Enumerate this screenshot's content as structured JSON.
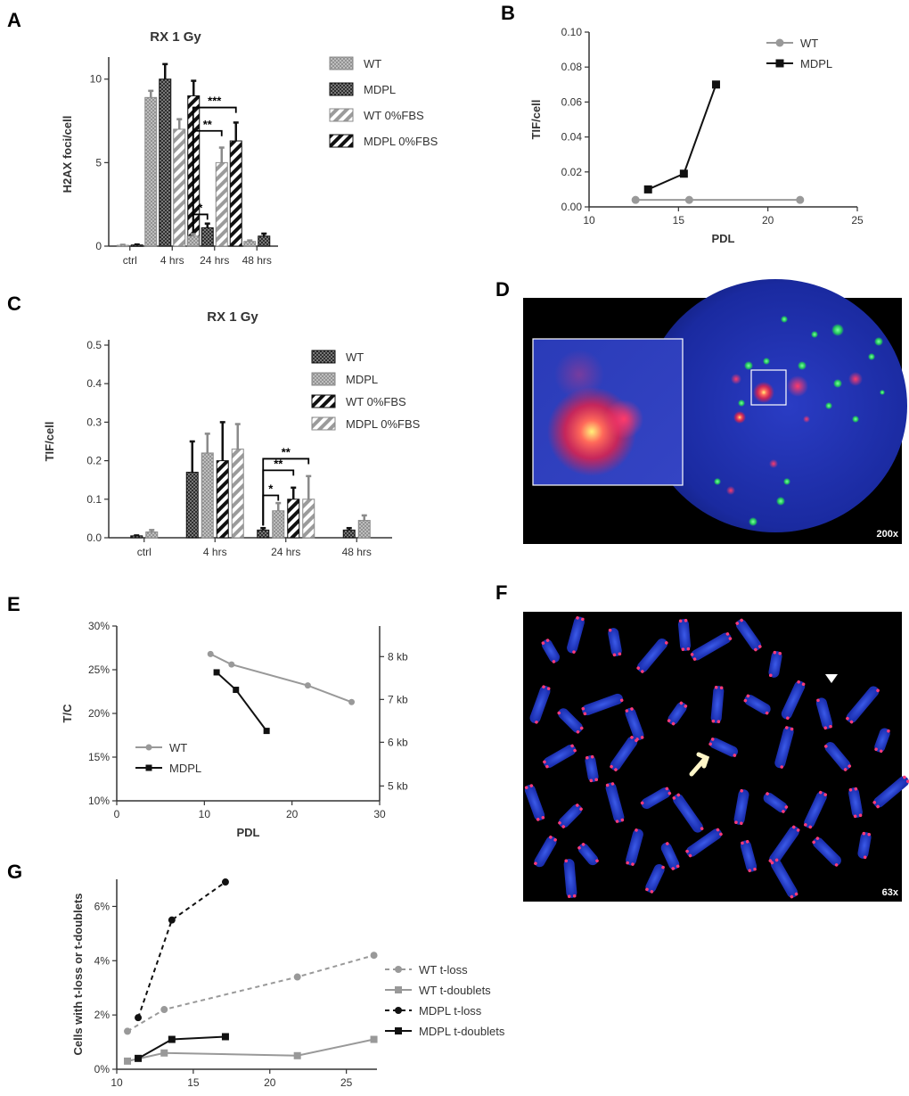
{
  "panels": {
    "A": "A",
    "B": "B",
    "C": "C",
    "D": "D",
    "E": "E",
    "F": "F",
    "G": "G"
  },
  "colors": {
    "gray": "#999999",
    "black": "#111111",
    "blue": "#1a2ca8",
    "red": "#e0224a",
    "green": "#21c75b"
  },
  "chart_data": [
    {
      "id": "A",
      "type": "bar",
      "title": "RX 1 Gy",
      "ylabel": "H2AX foci/cell",
      "categories": [
        "ctrl",
        "4 hrs",
        "24 hrs",
        "48 hrs"
      ],
      "ylim": [
        0,
        11
      ],
      "yticks": [
        0,
        5,
        10
      ],
      "series": [
        {
          "name": "WT",
          "style": "gray-crosshatch",
          "values": [
            0.05,
            8.9,
            0.6,
            0.28
          ],
          "errors": [
            0.03,
            0.4,
            0.12,
            0.06
          ]
        },
        {
          "name": "MDPL",
          "style": "black-crosshatch",
          "values": [
            0.07,
            10.0,
            1.1,
            0.6
          ],
          "errors": [
            0.03,
            0.9,
            0.25,
            0.15
          ]
        },
        {
          "name": "WT 0%FBS",
          "style": "gray-stripes",
          "values": [
            null,
            7.0,
            5.0,
            null
          ],
          "errors": [
            null,
            0.6,
            0.9,
            null
          ]
        },
        {
          "name": "MDPL 0%FBS",
          "style": "black-stripes",
          "values": [
            null,
            9.0,
            6.3,
            null
          ],
          "errors": [
            null,
            0.9,
            1.1,
            null
          ]
        }
      ],
      "significance": [
        {
          "label": "*",
          "category": "24 hrs",
          "from": 0,
          "to": 1,
          "y": 1.9
        },
        {
          "label": "**",
          "category": "24 hrs",
          "from": 0,
          "to": 2,
          "y": 6.9
        },
        {
          "label": "***",
          "category": "24 hrs",
          "from": 0,
          "to": 3,
          "y": 8.3
        }
      ]
    },
    {
      "id": "B",
      "type": "line",
      "ylabel": "TIF/cell",
      "xlabel": "PDL",
      "xlim": [
        10,
        25
      ],
      "xticks": [
        10,
        15,
        20,
        25
      ],
      "ylim": [
        0,
        0.1
      ],
      "yticks": [
        "0.00",
        "0.02",
        "0.04",
        "0.06",
        "0.08",
        "0.10"
      ],
      "series": [
        {
          "name": "WT",
          "color": "#999999",
          "marker": "circle",
          "x": [
            12.6,
            15.6,
            21.8
          ],
          "y": [
            0.004,
            0.004,
            0.004
          ]
        },
        {
          "name": "MDPL",
          "color": "#111111",
          "marker": "square",
          "x": [
            13.3,
            15.3,
            17.1
          ],
          "y": [
            0.01,
            0.019,
            0.07
          ]
        }
      ]
    },
    {
      "id": "C",
      "type": "bar",
      "title": "RX 1 Gy",
      "ylabel": "TIF/cell",
      "categories": [
        "ctrl",
        "4 hrs",
        "24 hrs",
        "48 hrs"
      ],
      "ylim": [
        0,
        0.5
      ],
      "yticks": [
        "0.0",
        "0.1",
        "0.2",
        "0.3",
        "0.4",
        "0.5"
      ],
      "series": [
        {
          "name": "WT",
          "style": "black-crosshatch",
          "values": [
            0.005,
            0.17,
            0.02,
            0.02
          ],
          "errors": [
            0.001,
            0.08,
            0.005,
            0.005
          ]
        },
        {
          "name": "MDPL",
          "style": "gray-crosshatch",
          "values": [
            0.015,
            0.22,
            0.07,
            0.045
          ],
          "errors": [
            0.005,
            0.05,
            0.02,
            0.013
          ]
        },
        {
          "name": "WT 0%FBS",
          "style": "black-stripes",
          "values": [
            null,
            0.2,
            0.1,
            null
          ],
          "errors": [
            null,
            0.1,
            0.03,
            null
          ]
        },
        {
          "name": "MDPL 0%FBS",
          "style": "gray-stripes",
          "values": [
            null,
            0.23,
            0.1,
            null
          ],
          "errors": [
            null,
            0.065,
            0.06,
            null
          ]
        }
      ],
      "significance": [
        {
          "label": "*",
          "category": "24 hrs",
          "from": 0,
          "to": 1,
          "y": 0.11
        },
        {
          "label": "**",
          "category": "24 hrs",
          "from": 0,
          "to": 2,
          "y": 0.175
        },
        {
          "label": "**",
          "category": "24 hrs",
          "from": 0,
          "to": 3,
          "y": 0.205
        }
      ]
    },
    {
      "id": "E",
      "type": "line",
      "ylabel": "T/C",
      "xlabel": "PDL",
      "xlim": [
        0,
        30
      ],
      "xticks": [
        0,
        10,
        20,
        30
      ],
      "ylim": [
        10,
        30
      ],
      "yticks": [
        "10%",
        "15%",
        "20%",
        "25%",
        "30%"
      ],
      "y2ticks": [
        {
          "label": "8 kb",
          "y": 26.5
        },
        {
          "label": "7 kb",
          "y": 21.6
        },
        {
          "label": "6 kb",
          "y": 16.7
        },
        {
          "label": "5 kb",
          "y": 11.7
        }
      ],
      "series": [
        {
          "name": "WT",
          "color": "#999999",
          "marker": "circle",
          "x": [
            10.7,
            13.1,
            21.8,
            26.8
          ],
          "y": [
            26.8,
            25.6,
            23.2,
            21.3
          ]
        },
        {
          "name": "MDPL",
          "color": "#111111",
          "marker": "square",
          "x": [
            11.4,
            13.6,
            17.1
          ],
          "y": [
            24.7,
            22.7,
            18.0
          ]
        }
      ]
    },
    {
      "id": "G",
      "type": "line",
      "ylabel": "Cells with t-loss or t-doublets",
      "xlabel": "PDL",
      "xlim": [
        10,
        27
      ],
      "xticks": [
        10,
        15,
        20,
        25
      ],
      "ylim": [
        0,
        7
      ],
      "yticks": [
        "0%",
        "2%",
        "4%",
        "6%"
      ],
      "series": [
        {
          "name": "WT t-loss",
          "color": "#999999",
          "marker": "circle",
          "dashed": true,
          "x": [
            10.7,
            13.1,
            21.8,
            26.8
          ],
          "y": [
            1.4,
            2.2,
            3.4,
            4.2
          ]
        },
        {
          "name": "WT t-doublets",
          "color": "#999999",
          "marker": "square",
          "dashed": false,
          "x": [
            10.7,
            13.1,
            21.8,
            26.8
          ],
          "y": [
            0.3,
            0.6,
            0.5,
            1.1
          ]
        },
        {
          "name": "MDPL t-loss",
          "color": "#111111",
          "marker": "circle",
          "dashed": true,
          "x": [
            11.4,
            13.6,
            17.1
          ],
          "y": [
            1.9,
            5.5,
            6.9
          ]
        },
        {
          "name": "MDPL t-doublets",
          "color": "#111111",
          "marker": "square",
          "dashed": false,
          "x": [
            11.4,
            13.6,
            17.1
          ],
          "y": [
            0.4,
            1.1,
            1.2
          ]
        }
      ]
    }
  ],
  "micrographs": {
    "D": {
      "magnification": "200x"
    },
    "F": {
      "magnification": "63x"
    }
  }
}
